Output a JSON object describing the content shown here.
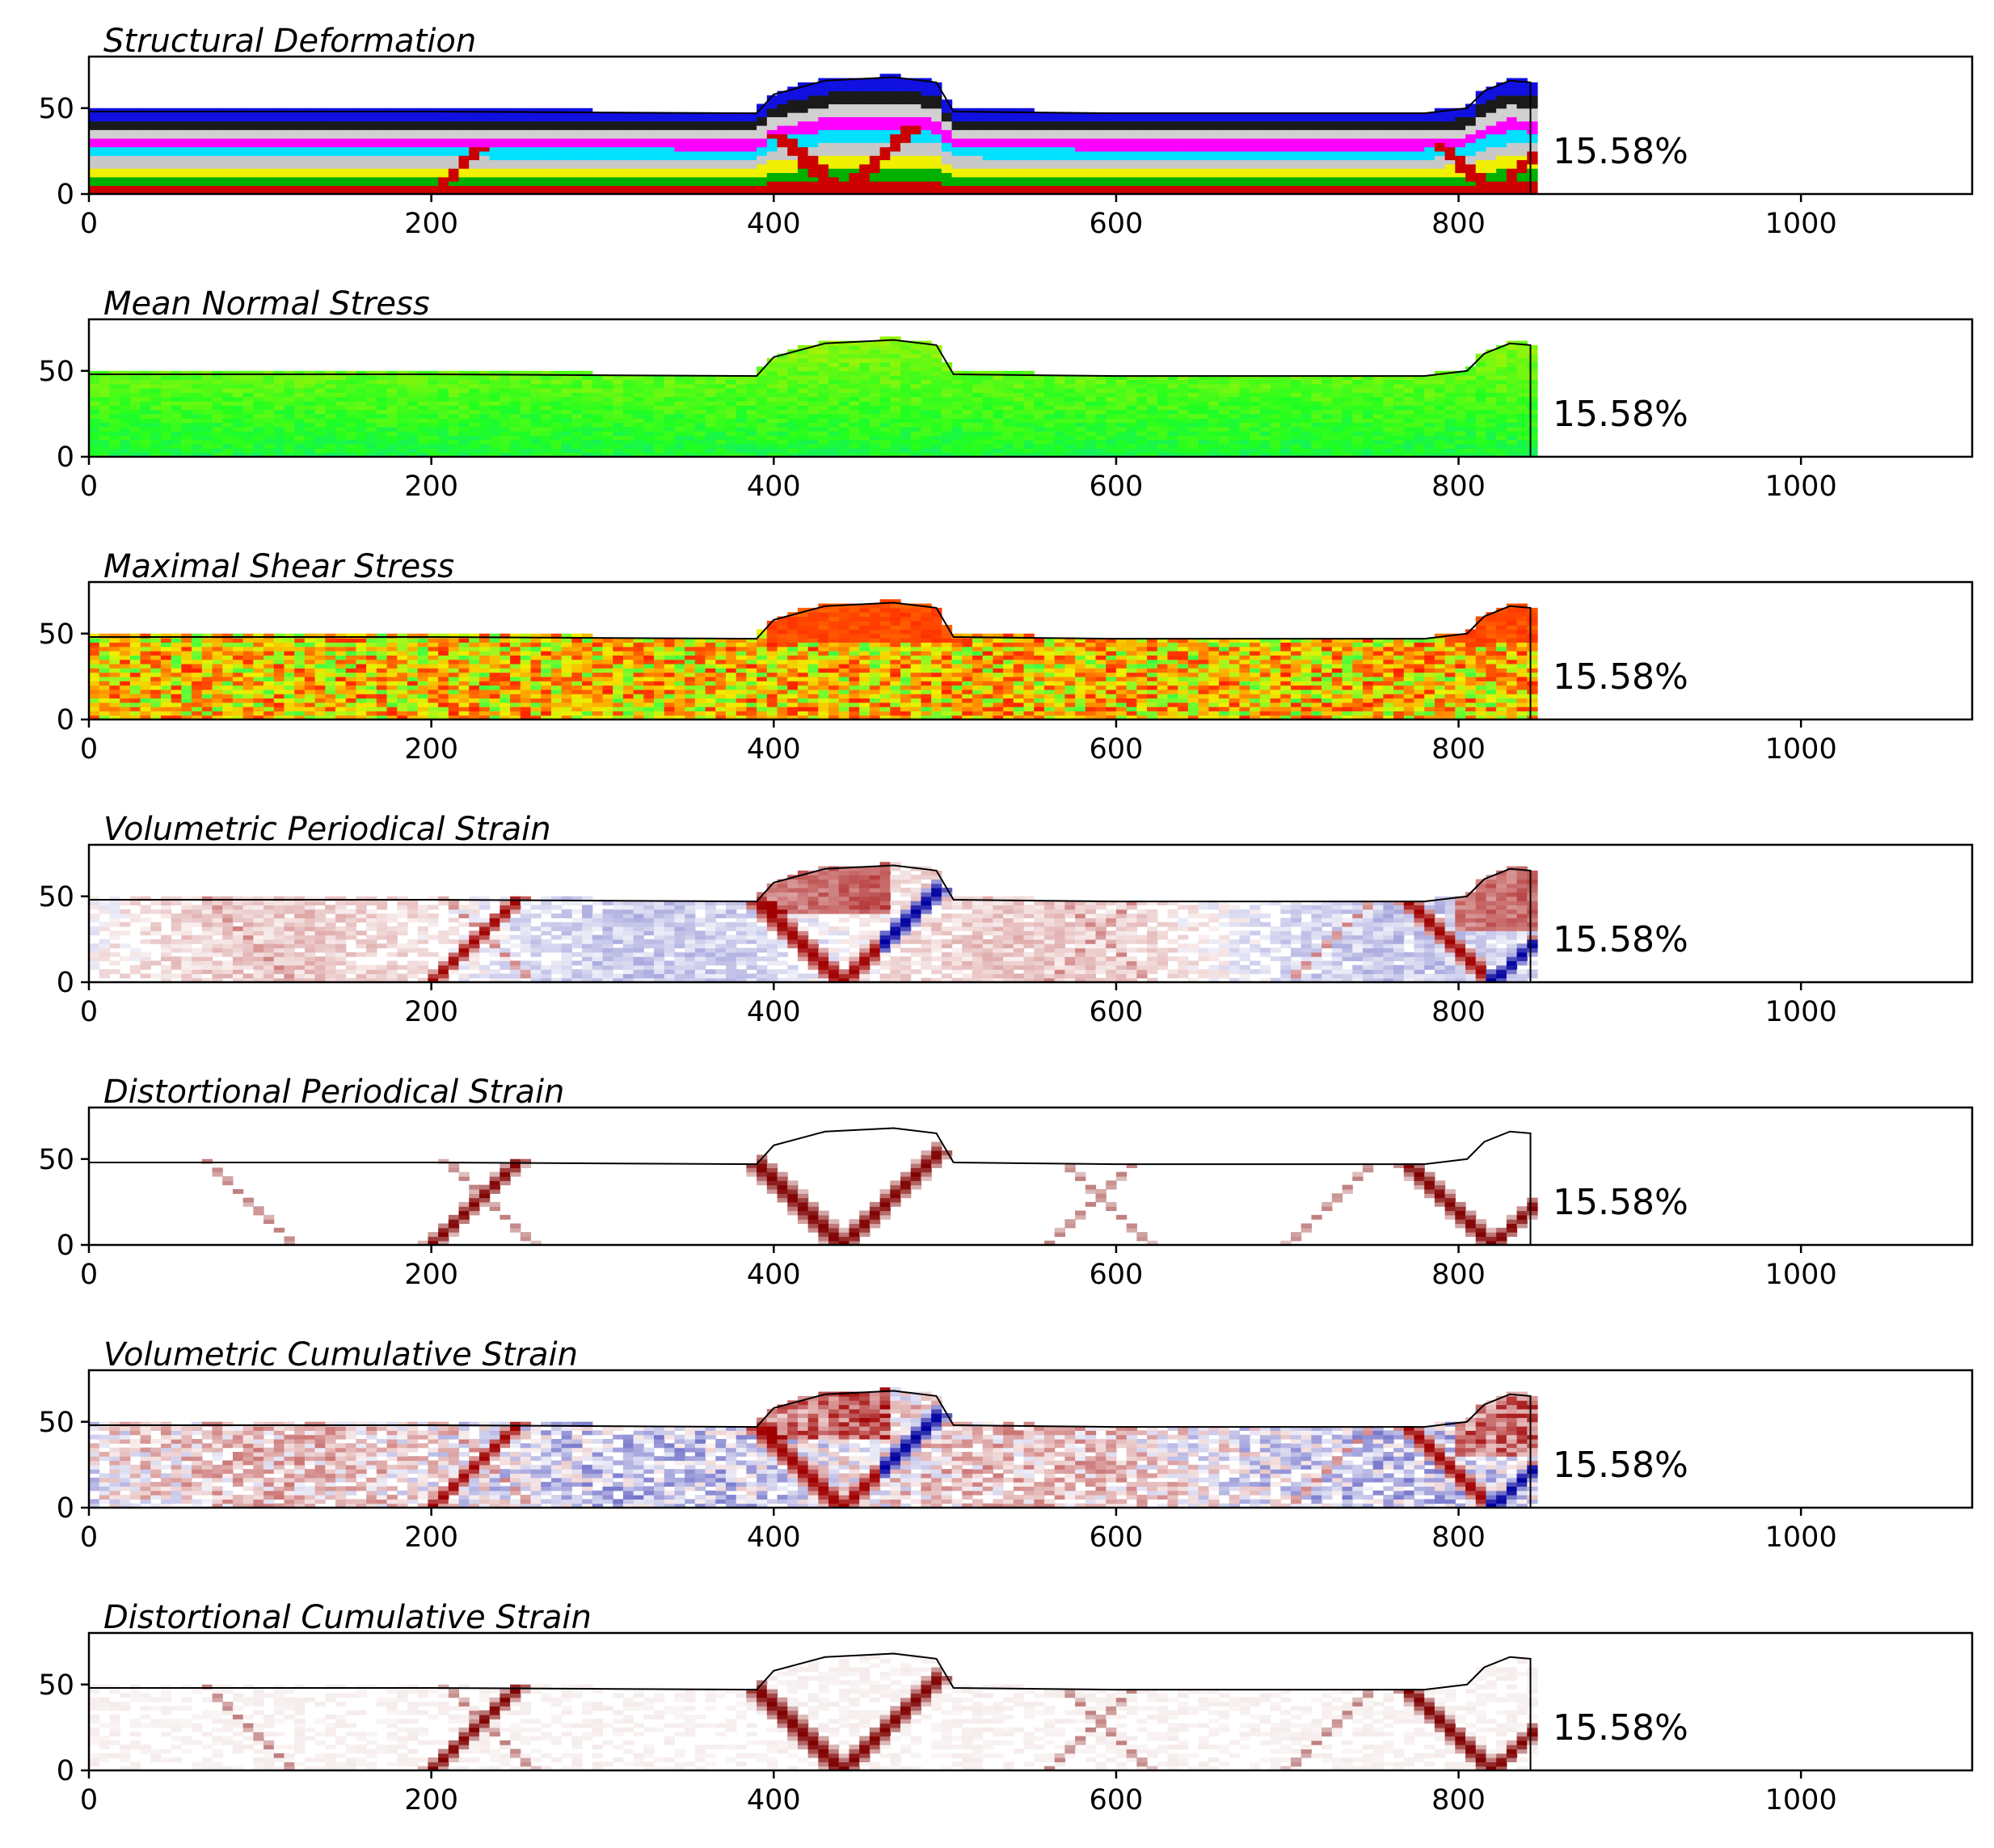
{
  "chart_data": [
    {
      "type": "heatmap",
      "title": "Structural Deformation",
      "annotation": "15.58%",
      "xlim": [
        0,
        1100
      ],
      "ylim": [
        0,
        80
      ],
      "xticks": [
        0,
        200,
        400,
        600,
        800,
        1000
      ],
      "yticks": [
        0,
        50
      ],
      "field": "layers",
      "model_x_range": [
        0,
        842
      ],
      "surface": [
        [
          0,
          48
        ],
        [
          200,
          48
        ],
        [
          390,
          47
        ],
        [
          400,
          58
        ],
        [
          430,
          66
        ],
        [
          470,
          68
        ],
        [
          495,
          65
        ],
        [
          505,
          48
        ],
        [
          600,
          47
        ],
        [
          780,
          47
        ],
        [
          805,
          50
        ],
        [
          815,
          60
        ],
        [
          830,
          66
        ],
        [
          842,
          65
        ]
      ],
      "layer_colors": [
        "#cc0000",
        "#00b000",
        "#f0f000",
        "#c8c8c8",
        "#00e0ff",
        "#ff00ff",
        "#d0d0d0",
        "#1a1a1a",
        "#1010e0"
      ]
    },
    {
      "type": "heatmap",
      "title": "Mean Normal Stress",
      "annotation": "15.58%",
      "xlim": [
        0,
        1100
      ],
      "ylim": [
        0,
        80
      ],
      "xticks": [
        0,
        200,
        400,
        600,
        800,
        1000
      ],
      "yticks": [
        0,
        50
      ],
      "field": "mean_normal",
      "model_x_range": [
        0,
        842
      ],
      "surface": [
        [
          0,
          48
        ],
        [
          200,
          48
        ],
        [
          390,
          47
        ],
        [
          400,
          58
        ],
        [
          430,
          66
        ],
        [
          470,
          68
        ],
        [
          495,
          65
        ],
        [
          505,
          48
        ],
        [
          600,
          47
        ],
        [
          780,
          47
        ],
        [
          805,
          50
        ],
        [
          815,
          60
        ],
        [
          830,
          66
        ],
        [
          842,
          65
        ]
      ],
      "colors": [
        "#00d8d8",
        "#20ff20",
        "#c8f000"
      ]
    },
    {
      "type": "heatmap",
      "title": "Maximal Shear Stress",
      "annotation": "15.58%",
      "xlim": [
        0,
        1100
      ],
      "ylim": [
        0,
        80
      ],
      "xticks": [
        0,
        200,
        400,
        600,
        800,
        1000
      ],
      "yticks": [
        0,
        50
      ],
      "field": "shear",
      "model_x_range": [
        0,
        842
      ],
      "surface": [
        [
          0,
          48
        ],
        [
          200,
          48
        ],
        [
          390,
          47
        ],
        [
          400,
          58
        ],
        [
          430,
          66
        ],
        [
          470,
          68
        ],
        [
          495,
          65
        ],
        [
          505,
          48
        ],
        [
          600,
          47
        ],
        [
          780,
          47
        ],
        [
          805,
          50
        ],
        [
          815,
          60
        ],
        [
          830,
          66
        ],
        [
          842,
          65
        ]
      ],
      "colors": [
        "#ff2000",
        "#ff9000",
        "#f0f000",
        "#40ff40"
      ]
    },
    {
      "type": "heatmap",
      "title": "Volumetric Periodical Strain",
      "annotation": "15.58%",
      "xlim": [
        0,
        1100
      ],
      "ylim": [
        0,
        80
      ],
      "xticks": [
        0,
        200,
        400,
        600,
        800,
        1000
      ],
      "yticks": [
        0,
        50
      ],
      "field": "vol_periodic",
      "model_x_range": [
        0,
        842
      ],
      "surface": [
        [
          0,
          48
        ],
        [
          200,
          48
        ],
        [
          390,
          47
        ],
        [
          400,
          58
        ],
        [
          430,
          66
        ],
        [
          470,
          68
        ],
        [
          495,
          65
        ],
        [
          505,
          48
        ],
        [
          600,
          47
        ],
        [
          780,
          47
        ],
        [
          805,
          50
        ],
        [
          815,
          60
        ],
        [
          830,
          66
        ],
        [
          842,
          65
        ]
      ],
      "colors": [
        "#0000a0",
        "#ffffff",
        "#a00000"
      ]
    },
    {
      "type": "heatmap",
      "title": "Distortional Periodical Strain",
      "annotation": "15.58%",
      "xlim": [
        0,
        1100
      ],
      "ylim": [
        0,
        80
      ],
      "xticks": [
        0,
        200,
        400,
        600,
        800,
        1000
      ],
      "yticks": [
        0,
        50
      ],
      "field": "dist_periodic",
      "model_x_range": [
        0,
        842
      ],
      "surface": [
        [
          0,
          48
        ],
        [
          200,
          48
        ],
        [
          390,
          47
        ],
        [
          400,
          58
        ],
        [
          430,
          66
        ],
        [
          470,
          68
        ],
        [
          495,
          65
        ],
        [
          505,
          48
        ],
        [
          600,
          47
        ],
        [
          780,
          47
        ],
        [
          805,
          50
        ],
        [
          815,
          60
        ],
        [
          830,
          66
        ],
        [
          842,
          65
        ]
      ],
      "colors": [
        "#ffffff",
        "#800000"
      ]
    },
    {
      "type": "heatmap",
      "title": "Volumetric Cumulative Strain",
      "annotation": "15.58%",
      "xlim": [
        0,
        1100
      ],
      "ylim": [
        0,
        80
      ],
      "xticks": [
        0,
        200,
        400,
        600,
        800,
        1000
      ],
      "yticks": [
        0,
        50
      ],
      "field": "vol_cumulative",
      "model_x_range": [
        0,
        842
      ],
      "surface": [
        [
          0,
          48
        ],
        [
          200,
          48
        ],
        [
          390,
          47
        ],
        [
          400,
          58
        ],
        [
          430,
          66
        ],
        [
          470,
          68
        ],
        [
          495,
          65
        ],
        [
          505,
          48
        ],
        [
          600,
          47
        ],
        [
          780,
          47
        ],
        [
          805,
          50
        ],
        [
          815,
          60
        ],
        [
          830,
          66
        ],
        [
          842,
          65
        ]
      ],
      "colors": [
        "#0000a0",
        "#ffffff",
        "#a00000"
      ]
    },
    {
      "type": "heatmap",
      "title": "Distortional Cumulative Strain",
      "annotation": "15.58%",
      "xlim": [
        0,
        1100
      ],
      "ylim": [
        0,
        80
      ],
      "xticks": [
        0,
        200,
        400,
        600,
        800,
        1000
      ],
      "yticks": [
        0,
        50
      ],
      "field": "dist_cumulative",
      "model_x_range": [
        0,
        842
      ],
      "surface": [
        [
          0,
          48
        ],
        [
          200,
          48
        ],
        [
          390,
          47
        ],
        [
          400,
          58
        ],
        [
          430,
          66
        ],
        [
          470,
          68
        ],
        [
          495,
          65
        ],
        [
          505,
          48
        ],
        [
          600,
          47
        ],
        [
          780,
          47
        ],
        [
          805,
          50
        ],
        [
          815,
          60
        ],
        [
          830,
          66
        ],
        [
          842,
          65
        ]
      ],
      "colors": [
        "#ffffff",
        "#800000"
      ]
    }
  ]
}
